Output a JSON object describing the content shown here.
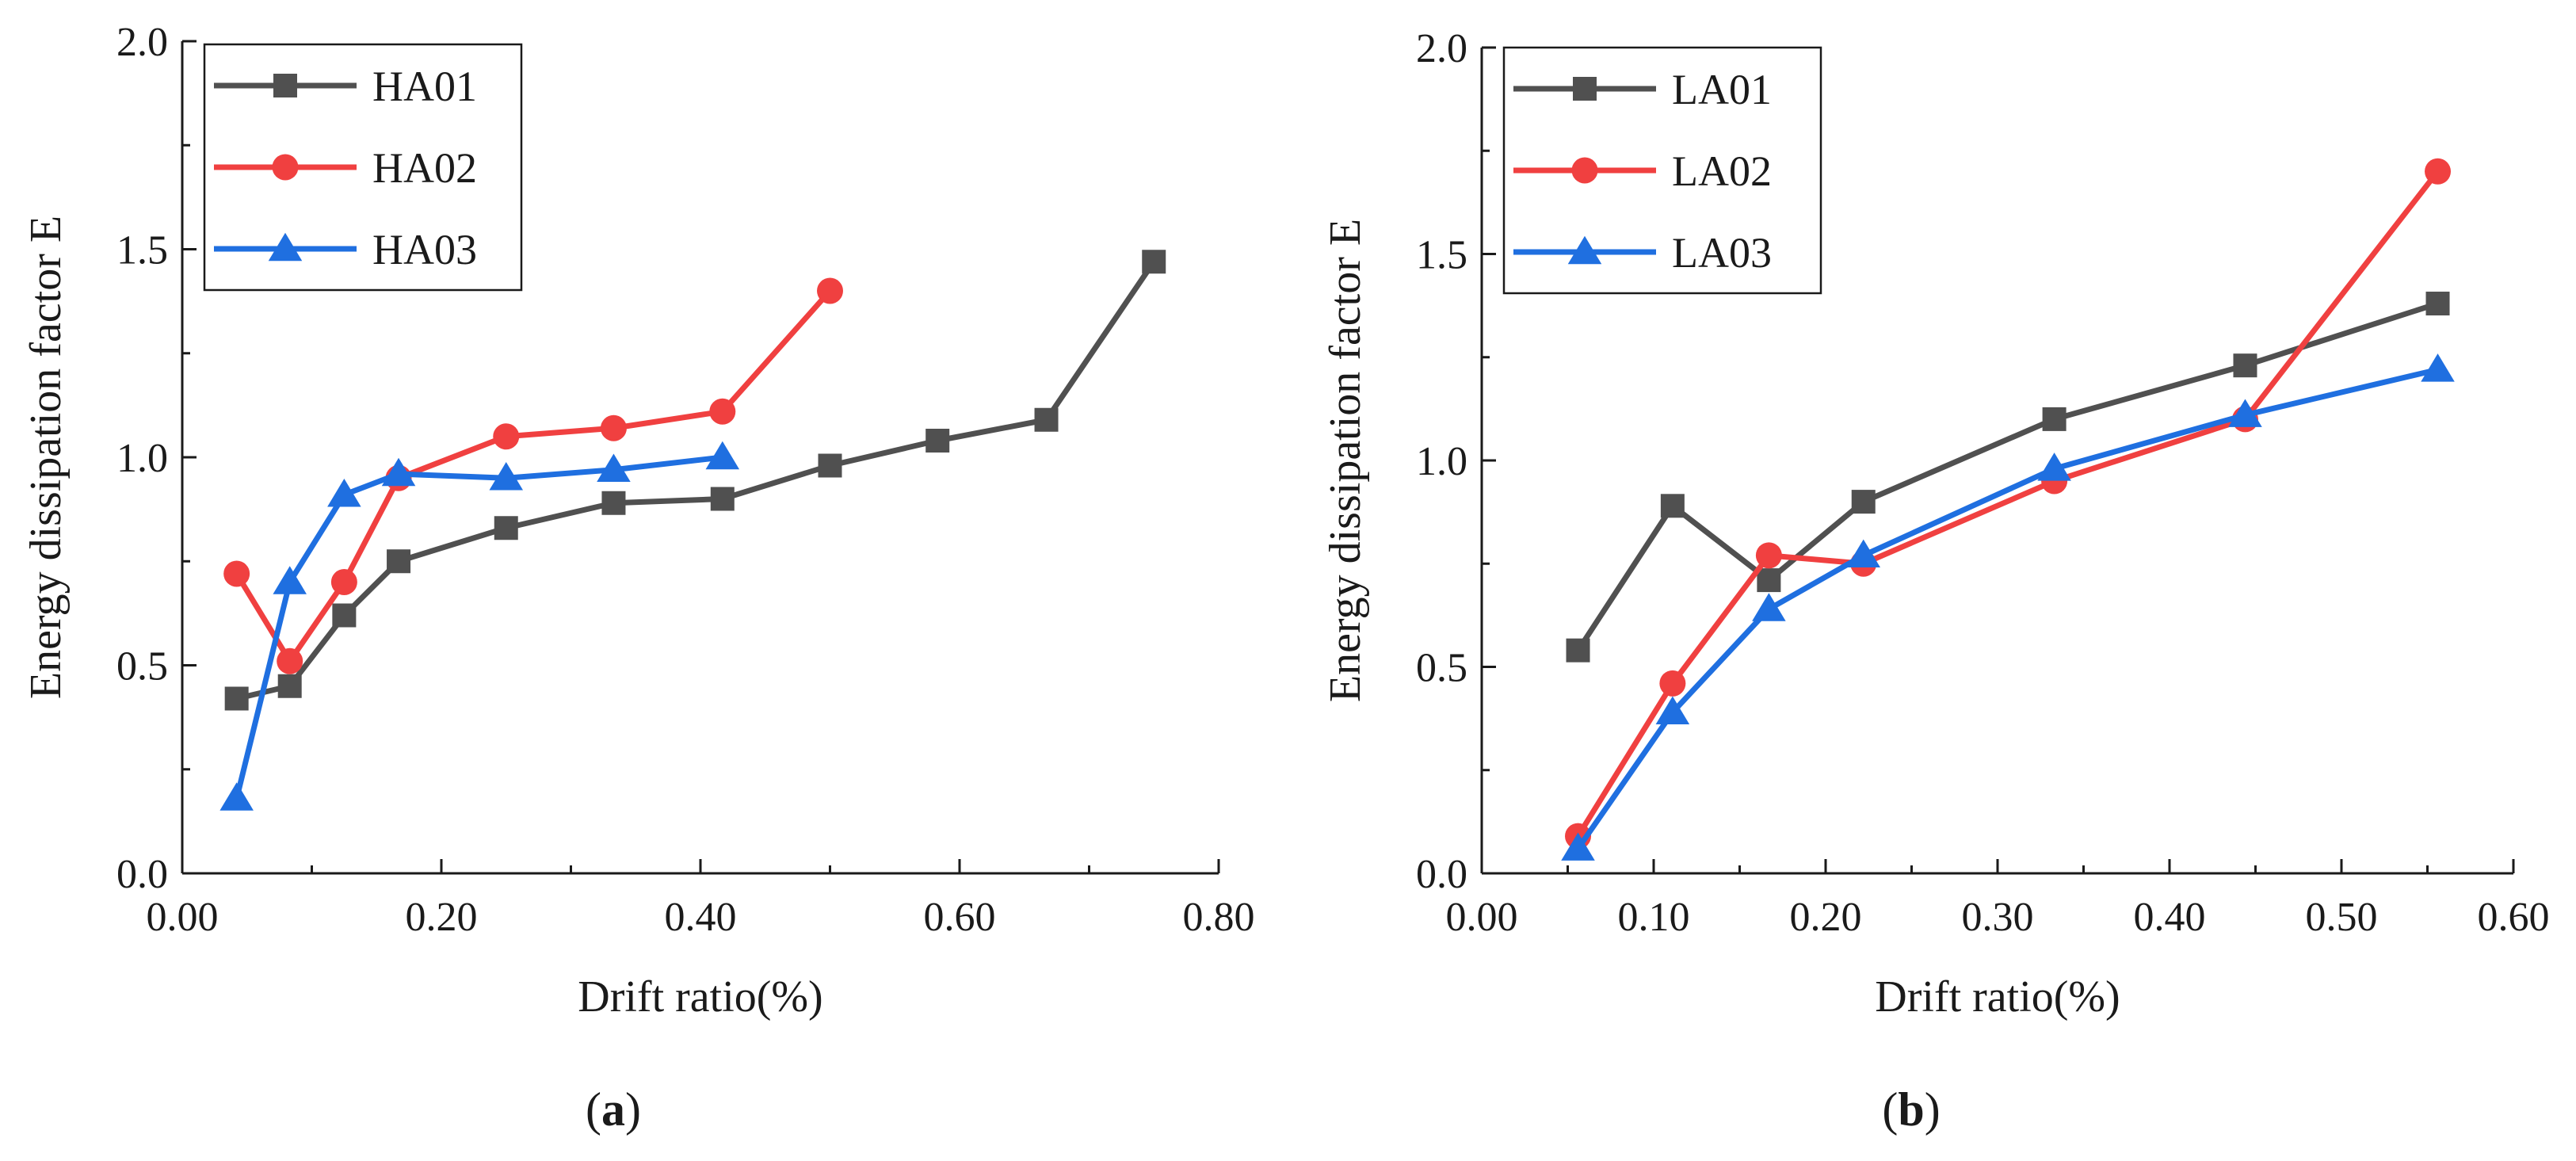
{
  "chart_data": [
    {
      "type": "line",
      "xlabel": "Drift ratio(%)",
      "ylabel": "Energy dissipation factor E",
      "xlim": [
        0,
        0.8
      ],
      "ylim": [
        0,
        2.0
      ],
      "xticks": [
        0,
        0.2,
        0.4,
        0.6,
        0.8
      ],
      "xtick_labels": [
        "0.00",
        "0.20",
        "0.40",
        "0.60",
        "0.80"
      ],
      "yticks": [
        0,
        0.5,
        1.0,
        1.5,
        2.0
      ],
      "ytick_labels": [
        "0.0",
        "0.5",
        "1.0",
        "1.5",
        "2.0"
      ],
      "grid": false,
      "legend": "top-left",
      "panel_label": {
        "open": "(",
        "letter": "a",
        "close": ")"
      },
      "series": [
        {
          "name": "HA01",
          "color": "#505050",
          "marker": "square",
          "x": [
            0.042,
            0.083,
            0.125,
            0.167,
            0.25,
            0.333,
            0.417,
            0.5,
            0.583,
            0.667,
            0.75
          ],
          "y": [
            0.42,
            0.45,
            0.62,
            0.75,
            0.83,
            0.89,
            0.9,
            0.98,
            1.04,
            1.09,
            1.47
          ]
        },
        {
          "name": "HA02",
          "color": "#f04040",
          "marker": "circle",
          "x": [
            0.042,
            0.083,
            0.125,
            0.167,
            0.25,
            0.333,
            0.417,
            0.5
          ],
          "y": [
            0.72,
            0.51,
            0.7,
            0.95,
            1.05,
            1.07,
            1.11,
            1.4
          ]
        },
        {
          "name": "HA03",
          "color": "#1f6fe0",
          "marker": "triangle",
          "x": [
            0.042,
            0.083,
            0.125,
            0.167,
            0.25,
            0.333,
            0.417
          ],
          "y": [
            0.18,
            0.7,
            0.91,
            0.96,
            0.95,
            0.97,
            1.0
          ]
        }
      ]
    },
    {
      "type": "line",
      "xlabel": "Drift ratio(%)",
      "ylabel": "Energy dissipation factor E",
      "xlim": [
        0,
        0.6
      ],
      "ylim": [
        0,
        2.0
      ],
      "xticks": [
        0,
        0.1,
        0.2,
        0.3,
        0.4,
        0.5,
        0.6
      ],
      "xtick_labels": [
        "0.00",
        "0.10",
        "0.20",
        "0.30",
        "0.40",
        "0.50",
        "0.60"
      ],
      "yticks": [
        0,
        0.5,
        1.0,
        1.5,
        2.0
      ],
      "ytick_labels": [
        "0.0",
        "0.5",
        "1.0",
        "1.5",
        "2.0"
      ],
      "grid": false,
      "legend": "top-left",
      "panel_label": {
        "open": "(",
        "letter": "b",
        "close": ")"
      },
      "series": [
        {
          "name": "LA01",
          "color": "#505050",
          "marker": "square",
          "x": [
            0.056,
            0.111,
            0.167,
            0.222,
            0.333,
            0.444,
            0.556
          ],
          "y": [
            0.54,
            0.89,
            0.71,
            0.9,
            1.1,
            1.23,
            1.38
          ]
        },
        {
          "name": "LA02",
          "color": "#f04040",
          "marker": "circle",
          "x": [
            0.056,
            0.111,
            0.167,
            0.222,
            0.333,
            0.444,
            0.556
          ],
          "y": [
            0.09,
            0.46,
            0.77,
            0.75,
            0.95,
            1.1,
            1.7
          ]
        },
        {
          "name": "LA03",
          "color": "#1f6fe0",
          "marker": "triangle",
          "x": [
            0.056,
            0.111,
            0.167,
            0.222,
            0.333,
            0.444,
            0.556
          ],
          "y": [
            0.06,
            0.39,
            0.64,
            0.77,
            0.98,
            1.11,
            1.22
          ]
        }
      ]
    }
  ]
}
